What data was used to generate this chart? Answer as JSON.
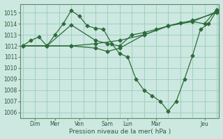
{
  "background_color": "#cce8e0",
  "grid_color": "#99ccbb",
  "line_color": "#2d6b3c",
  "xlabel": "Pression niveau de la mer( hPa )",
  "ylim": [
    1005.5,
    1015.8
  ],
  "yticks": [
    1006,
    1007,
    1008,
    1009,
    1010,
    1011,
    1012,
    1013,
    1014,
    1015
  ],
  "xlim": [
    -0.1,
    8.1
  ],
  "lines": [
    {
      "x": [
        0,
        0.33,
        0.67,
        1.0,
        1.33,
        1.67,
        2.0,
        2.33,
        2.67,
        3.0,
        3.33,
        3.67,
        4.0,
        4.33,
        4.67,
        5.0,
        5.33,
        5.67,
        6.0,
        6.33,
        6.67,
        7.0,
        7.33,
        7.67,
        8.0
      ],
      "y": [
        1012.0,
        1012.5,
        1012.8,
        1012.0,
        1013.0,
        1014.0,
        1015.2,
        1014.7,
        1013.8,
        1013.6,
        1013.5,
        1012.2,
        1011.3,
        1011.0,
        1009.0,
        1008.0,
        1007.5,
        1007.0,
        1006.1,
        1007.0,
        1009.0,
        1011.1,
        1013.5,
        1014.0,
        1015.2
      ]
    },
    {
      "x": [
        0,
        1.0,
        2.0,
        3.0,
        4.0,
        5.0,
        6.0,
        7.0,
        8.0
      ],
      "y": [
        1012.0,
        1012.0,
        1012.0,
        1012.2,
        1012.5,
        1013.0,
        1013.8,
        1014.3,
        1015.0
      ]
    },
    {
      "x": [
        0,
        1.0,
        2.0,
        3.0,
        3.5,
        4.0,
        5.0,
        6.0,
        7.0,
        8.0
      ],
      "y": [
        1012.0,
        1012.0,
        1012.0,
        1011.8,
        1011.5,
        1011.8,
        1013.0,
        1013.8,
        1014.2,
        1015.1
      ]
    },
    {
      "x": [
        0,
        1.0,
        2.0,
        3.0,
        3.5,
        4.0,
        4.5,
        5.0,
        5.5,
        6.0,
        6.5,
        7.0,
        7.5,
        8.0
      ],
      "y": [
        1012.0,
        1012.0,
        1013.9,
        1012.5,
        1012.2,
        1012.0,
        1013.0,
        1013.2,
        1013.5,
        1013.8,
        1014.1,
        1014.2,
        1014.0,
        1015.3
      ]
    }
  ],
  "x_tick_positions": [
    0.5,
    1.33,
    2.33,
    3.5,
    4.33,
    5.5,
    7.5
  ],
  "x_tick_labels": [
    "Dim",
    "Mer",
    "Ven",
    "Sam",
    "Lun",
    "Mar",
    "Jeu"
  ],
  "x_vline_positions": [
    0,
    1.0,
    2.0,
    3.0,
    4.0,
    5.0,
    6.0,
    7.0,
    8.0
  ]
}
